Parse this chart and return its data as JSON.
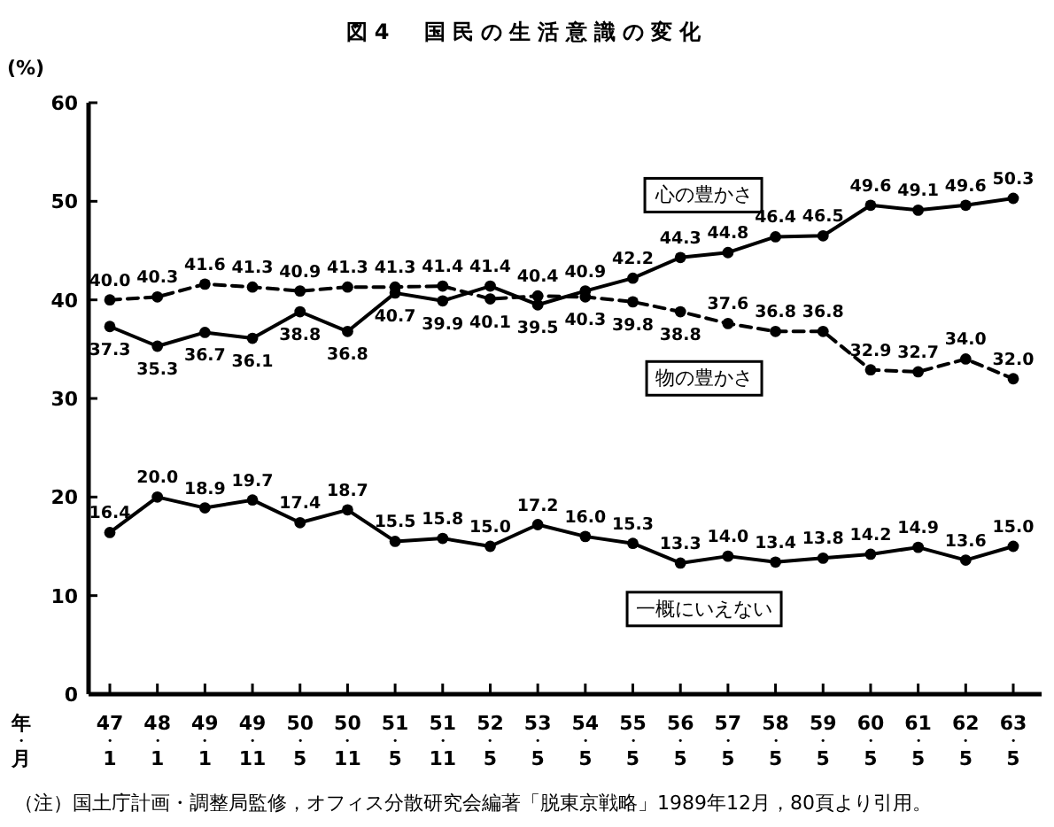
{
  "chart_data": {
    "type": "line",
    "title": "図4　国民の生活意識の変化",
    "ylabel": "(%)",
    "xlabel": "年・月",
    "categories": [
      "47・1",
      "48・1",
      "49・1",
      "49・11",
      "50・5",
      "50・11",
      "51・5",
      "51・11",
      "52・5",
      "53・5",
      "54・5",
      "55・5",
      "56・5",
      "57・5",
      "58・5",
      "59・5",
      "60・5",
      "61・5",
      "62・5",
      "63・5"
    ],
    "series": [
      {
        "name": "心の豊かさ",
        "color": "#000000",
        "line_style": "solid",
        "values": [
          37.3,
          35.3,
          36.7,
          36.1,
          38.8,
          36.8,
          40.7,
          39.9,
          41.4,
          39.5,
          40.9,
          42.2,
          44.3,
          44.8,
          46.4,
          46.5,
          49.6,
          49.1,
          49.6,
          50.3
        ],
        "value_labels": [
          "37.3",
          "35.3",
          "36.7",
          "36.1",
          "38.8",
          "36.8",
          "40.7",
          "39.9",
          "41.4",
          "39.5",
          "40.9",
          "42.2",
          "44.3",
          "44.8",
          "46.4",
          "46.5",
          "49.6",
          "49.1",
          "49.6",
          "50.3"
        ]
      },
      {
        "name": "物の豊かさ",
        "color": "#000000",
        "line_style": "dashed",
        "values": [
          40.0,
          40.3,
          41.6,
          41.3,
          40.9,
          41.3,
          41.3,
          41.4,
          40.1,
          40.4,
          40.3,
          39.8,
          38.8,
          37.6,
          36.8,
          36.8,
          32.9,
          32.7,
          34.0,
          32.0
        ],
        "value_labels": [
          "40.0",
          "40.3",
          "41.6",
          "41.3",
          "40.9",
          "41.3",
          "41.3",
          "41.4",
          "40.1",
          "40.4",
          "40.3",
          "39.8",
          "38.8",
          "37.6",
          "36.8",
          "36.8",
          "32.9",
          "32.7",
          "34.0",
          "32.0"
        ]
      },
      {
        "name": "一概にいえない",
        "color": "#000000",
        "line_style": "solid",
        "values": [
          16.4,
          20.0,
          18.9,
          19.7,
          17.4,
          18.7,
          15.5,
          15.8,
          15.0,
          17.2,
          16.0,
          15.3,
          13.3,
          14.0,
          13.4,
          13.8,
          14.2,
          14.9,
          13.6,
          15.0
        ],
        "value_labels": [
          "16.4",
          "20.0",
          "18.9",
          "19.7",
          "17.4",
          "18.7",
          "15.5",
          "15.8",
          "15.0",
          "17.2",
          "16.0",
          "15.3",
          "13.3",
          "14.0",
          "13.4",
          "13.8",
          "14.2",
          "14.9",
          "13.6",
          "15.0"
        ]
      }
    ],
    "ylim": [
      0,
      60
    ],
    "yticks": [
      0,
      10,
      20,
      30,
      40,
      50,
      60
    ],
    "marker": "circle",
    "annotations": [
      "（注）国土庁計画・調整局監修，オフィス分散研究会編著「脱東京戦略」1989年12月，80頁より引用。"
    ]
  }
}
